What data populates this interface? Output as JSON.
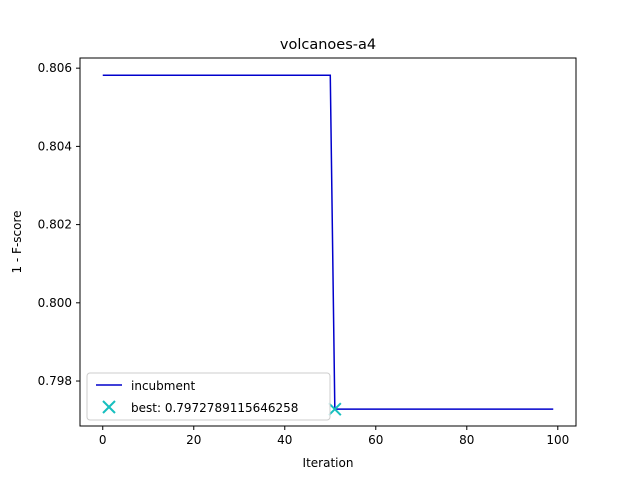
{
  "chart_data": {
    "type": "line",
    "title": "volcanoes-a4",
    "xlabel": "Iteration",
    "ylabel": "1 - F-score",
    "xlim": [
      -5,
      104
    ],
    "ylim": [
      0.79685,
      0.80626
    ],
    "xticks": [
      0,
      20,
      40,
      60,
      80,
      100
    ],
    "xtick_labels": [
      "0",
      "20",
      "40",
      "60",
      "80",
      "100"
    ],
    "yticks": [
      0.798,
      0.8,
      0.802,
      0.804,
      0.806
    ],
    "ytick_labels": [
      "0.798",
      "0.800",
      "0.802",
      "0.804",
      "0.806"
    ],
    "grid": false,
    "legend_position": "lower-left",
    "series": [
      {
        "name": "incubment",
        "kind": "line",
        "color": "#0000cc",
        "x": [
          0,
          50,
          51,
          99
        ],
        "y": [
          0.80582,
          0.80582,
          0.79728,
          0.79728
        ]
      },
      {
        "name": "best: 0.7972789115646258",
        "kind": "marker",
        "marker": "x",
        "color": "#17bfbf",
        "x": [
          51
        ],
        "y": [
          0.7972789115646258
        ]
      }
    ]
  }
}
